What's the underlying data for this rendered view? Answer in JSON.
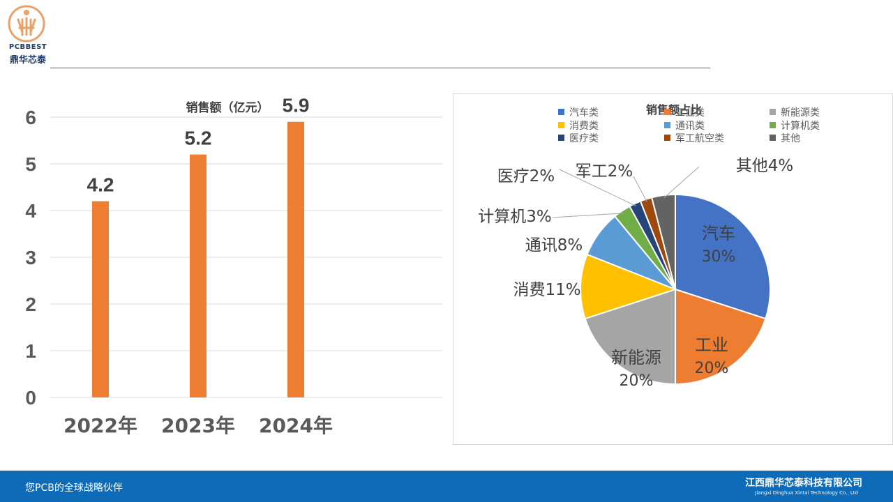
{
  "header": {
    "logo_en": "PCBBEST",
    "logo_cn": "鼎华芯泰",
    "colors": {
      "logo": "#e8a268",
      "rule": "#2e5fa8"
    }
  },
  "footer": {
    "slogan": "您PCB的全球战略伙伴",
    "company_cn": "江西鼎华芯泰科技有限公司",
    "company_en": "Jiangxi Dinghua Xintai Technology Co., Ltd",
    "color": "#0e6bb8"
  },
  "chart_data": [
    {
      "type": "bar",
      "title": "销售额（亿元）",
      "categories": [
        "2022年",
        "2023年",
        "2024年"
      ],
      "values": [
        4.2,
        5.2,
        5.9
      ],
      "data_labels": [
        "4.2",
        "5.2",
        "5.9"
      ],
      "ylim": [
        0,
        6
      ],
      "yticks": [
        "0",
        "1",
        "2",
        "3",
        "4",
        "5",
        "6"
      ],
      "grid": true,
      "color": "#ed7d31"
    },
    {
      "type": "pie",
      "title": "销售额占比",
      "legend_position": "top",
      "slices": [
        {
          "legend": "汽车类",
          "label": "汽车",
          "pct_label": "30%",
          "value": 30,
          "color": "#4472c4"
        },
        {
          "legend": "工业类",
          "label": "工业",
          "pct_label": "20%",
          "value": 20,
          "color": "#ed7d31"
        },
        {
          "legend": "新能源类",
          "label": "新能源",
          "pct_label": "20%",
          "value": 20,
          "color": "#a5a5a5"
        },
        {
          "legend": "消费类",
          "label": "消费11%",
          "value": 11,
          "color": "#ffc000"
        },
        {
          "legend": "通讯类",
          "label": "通讯8%",
          "value": 8,
          "color": "#5b9bd5"
        },
        {
          "legend": "计算机类",
          "label": "计算机3%",
          "value": 3,
          "color": "#70ad47"
        },
        {
          "legend": "医疗类",
          "label": "医疗2%",
          "value": 2,
          "color": "#264478"
        },
        {
          "legend": "军工航空类",
          "label": "军工2%",
          "value": 2,
          "color": "#9e480e"
        },
        {
          "legend": "其他",
          "label": "其他4%",
          "value": 4,
          "color": "#636363"
        }
      ]
    }
  ]
}
